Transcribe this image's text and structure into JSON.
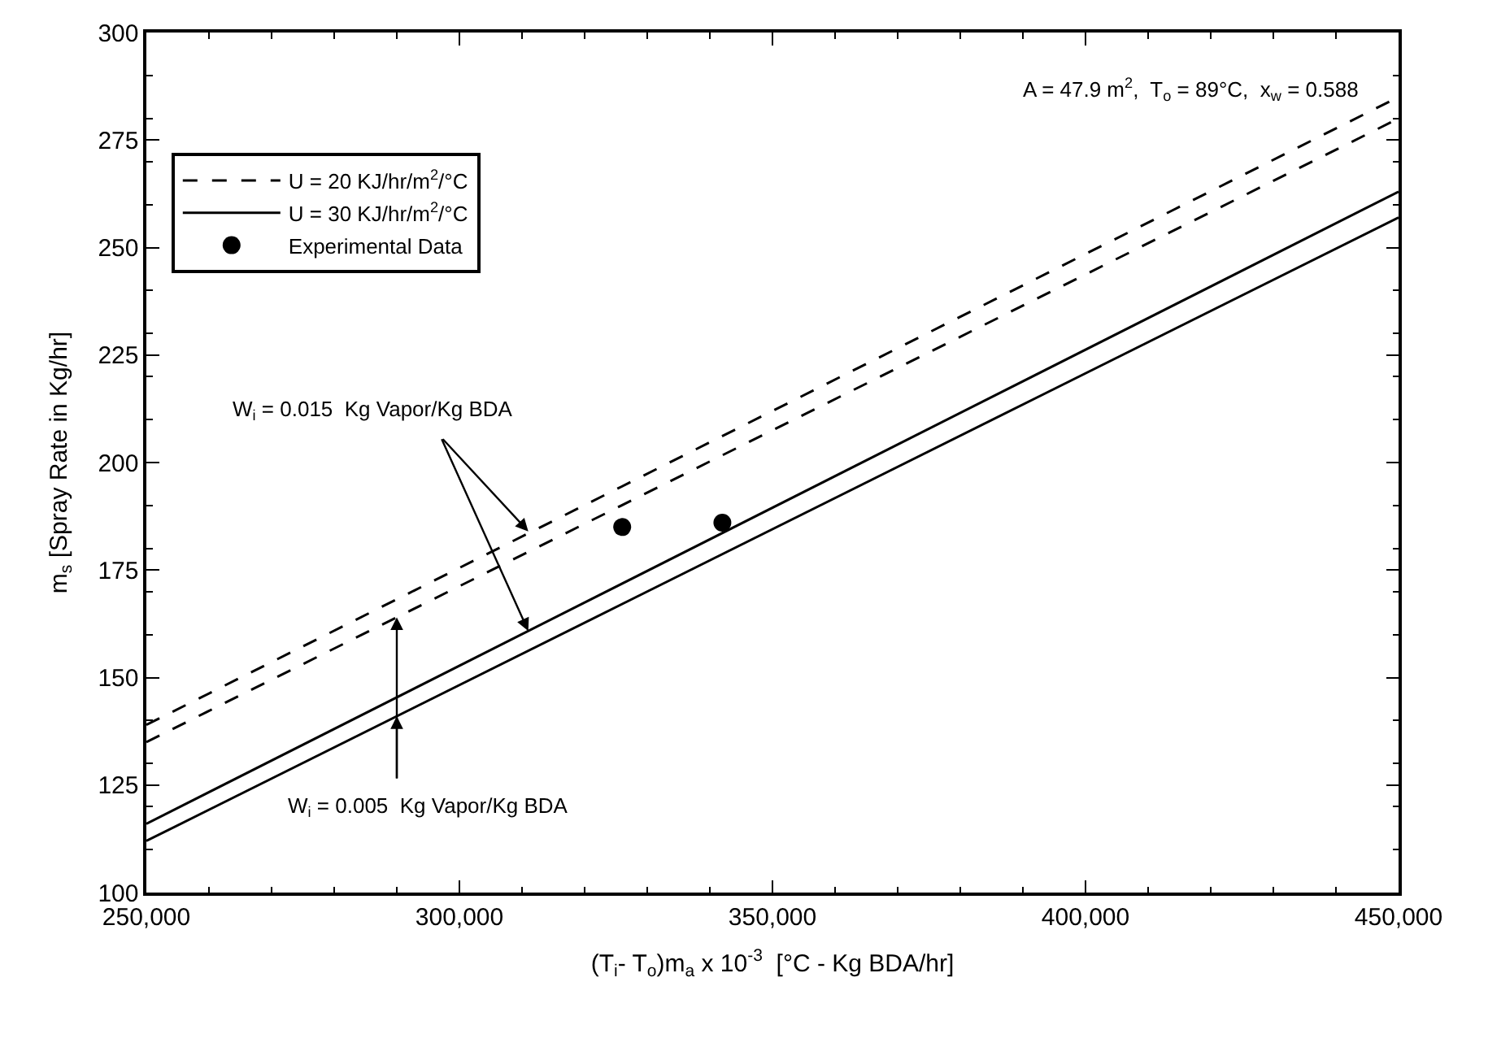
{
  "chart_data": {
    "type": "line",
    "xlabel": "(T$_{i}$- T$_{o}$)m$_{a}$ x 10$^{-3}$  [°C - Kg BDA/hr]",
    "ylabel": "m$_{s}$ [Spray Rate in Kg/hr]",
    "xlim": [
      250000,
      450000
    ],
    "xticks": [
      {
        "value": 250000,
        "label": "250,000"
      },
      {
        "value": 300000,
        "label": "300,000"
      },
      {
        "value": 350000,
        "label": "350,000"
      },
      {
        "value": 400000,
        "label": "400,000"
      },
      {
        "value": 450000,
        "label": "450,000"
      }
    ],
    "ylim": [
      100,
      300
    ],
    "yticks": [
      100,
      125,
      150,
      175,
      200,
      225,
      250,
      275,
      300
    ],
    "legend": "top left",
    "series": [
      {
        "name": "U = 20 KJ/hr/m$^{2}$/°C",
        "color": "#000000",
        "line_style": "dashed",
        "x": [
          250000,
          450000
        ],
        "values": [
          139,
          285
        ]
      },
      {
        "color": "#000000",
        "line_style": "dashed",
        "x": [
          250000,
          450000
        ],
        "values": [
          135,
          280
        ]
      },
      {
        "name": "U = 30 KJ/hr/m$^{2}$/°C",
        "color": "#000000",
        "line_style": "solid",
        "x": [
          250000,
          450000
        ],
        "values": [
          116,
          263
        ]
      },
      {
        "color": "#000000",
        "line_style": "solid",
        "x": [
          250000,
          450000
        ],
        "values": [
          112,
          257
        ]
      },
      {
        "name": "Experimental Data",
        "type": "scatter",
        "marker": "circle",
        "color": "#000000",
        "x": [
          326000,
          342000
        ],
        "values": [
          185,
          186
        ]
      }
    ],
    "annotations": [
      "A = 47.9 m$^{2}$,  T$_{o}$ = 89°C,  x$_{w}$ = 0.588",
      {
        "text": "W$_{i}$ = 0.015  Kg Vapor/Kg BDA",
        "x": 311000,
        "y": 184
      },
      {
        "text": "W$_{i}$ = 0.005  Kg Vapor/Kg BDA",
        "x": 290000,
        "y": 164
      }
    ]
  }
}
